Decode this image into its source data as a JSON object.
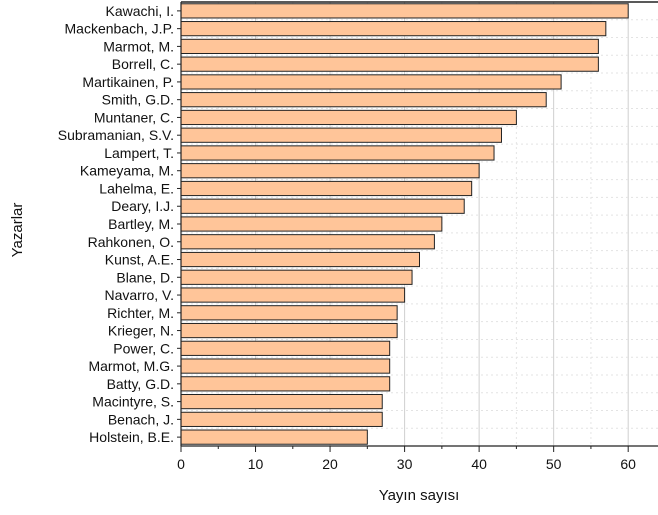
{
  "chart_data": {
    "type": "bar",
    "orientation": "horizontal",
    "title": "",
    "xlabel": "Yayın sayısı",
    "ylabel": "Yazarlar",
    "xlim": [
      0,
      64
    ],
    "xticks": [
      0,
      10,
      20,
      30,
      40,
      50,
      60
    ],
    "grid": true,
    "legend": "none",
    "bar_color": "#FFC599",
    "bar_edge_color": "#222222",
    "categories": [
      "Kawachi, I.",
      "Mackenbach, J.P.",
      "Marmot, M.",
      "Borrell, C.",
      "Martikainen, P.",
      "Smith, G.D.",
      "Muntaner, C.",
      "Subramanian, S.V.",
      "Lampert, T.",
      "Kameyama, M.",
      "Lahelma, E.",
      "Deary, I.J.",
      "Bartley, M.",
      "Rahkonen, O.",
      "Kunst, A.E.",
      "Blane, D.",
      "Navarro, V.",
      "Richter, M.",
      "Krieger, N.",
      "Power, C.",
      "Marmot, M.G.",
      "Batty, G.D.",
      "Macintyre, S.",
      "Benach, J.",
      "Holstein, B.E."
    ],
    "values": [
      60,
      57,
      56,
      56,
      51,
      49,
      45,
      43,
      42,
      40,
      39,
      38,
      35,
      34,
      32,
      31,
      30,
      29,
      29,
      28,
      28,
      28,
      27,
      27,
      25
    ]
  }
}
